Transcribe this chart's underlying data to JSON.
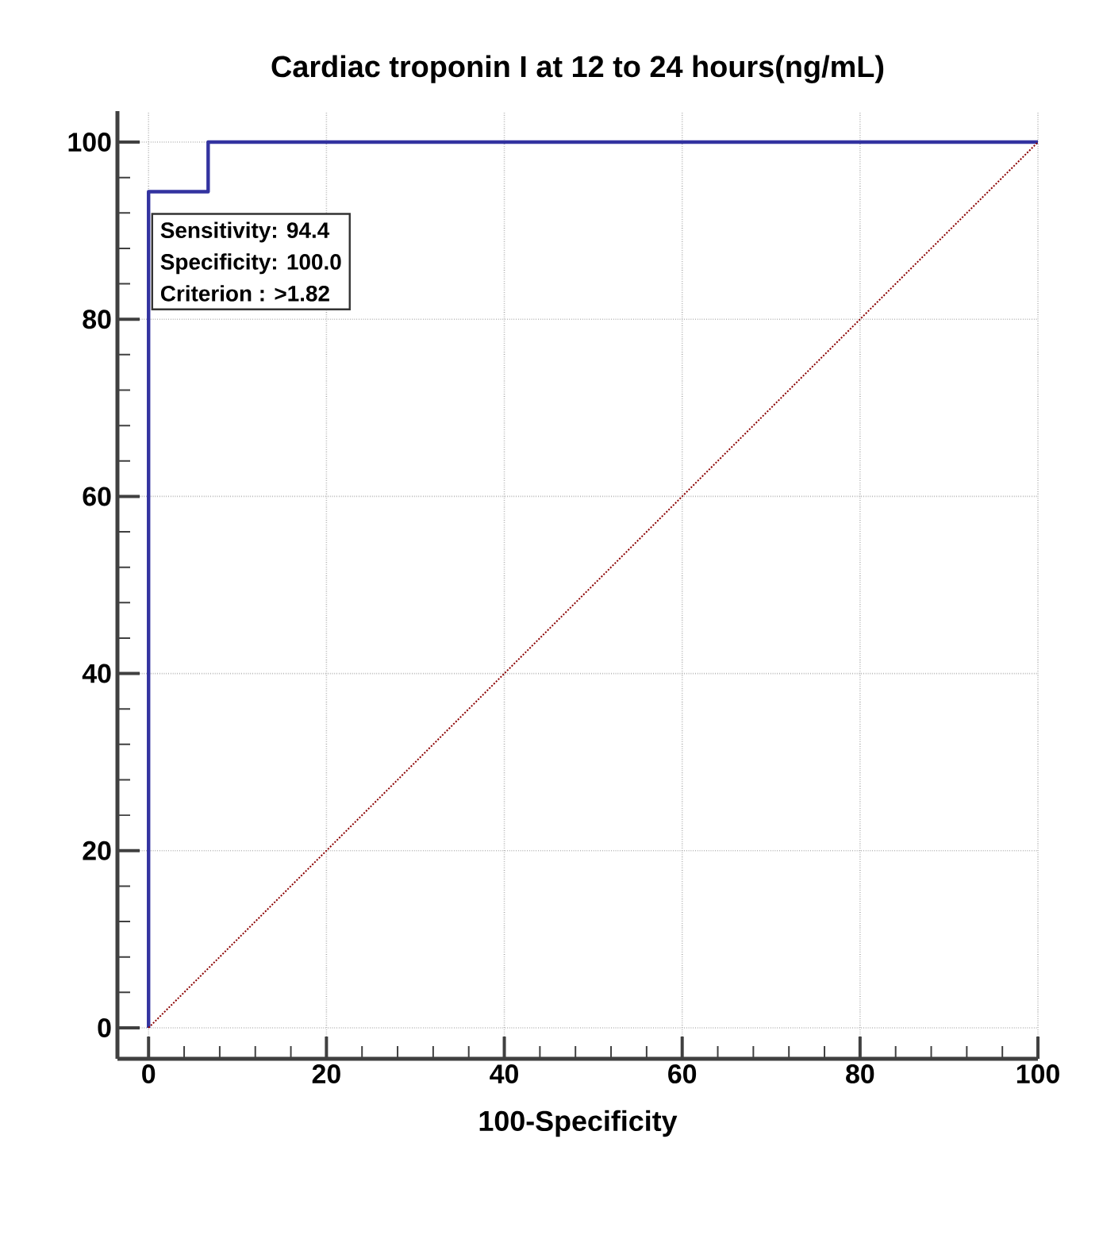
{
  "chart_data": {
    "type": "step",
    "title": "Cardiac troponin I at 12 to 24 hours(ng/mL)",
    "xlabel": "100-Specificity",
    "xlim": [
      -3.5,
      100
    ],
    "ylim": [
      -3.5,
      103.5
    ],
    "xticks": [
      0,
      20,
      40,
      60,
      80,
      100
    ],
    "yticks": [
      0,
      20,
      40,
      60,
      80,
      100
    ],
    "grid": true,
    "series": [
      {
        "color": "#3333a0",
        "line_style": "solid",
        "x": [
          0,
          0,
          6.7,
          6.7,
          100
        ],
        "values": [
          0,
          94.4,
          94.4,
          100,
          100
        ]
      },
      {
        "type": "line",
        "color": "#8b0000",
        "line_style": "dotted",
        "x": [
          0,
          100
        ],
        "values": [
          0,
          100
        ]
      }
    ],
    "annotations": [
      "Sensitivity: 94.4",
      "Specificity: 100.0",
      "Criterion : >1.82"
    ]
  }
}
